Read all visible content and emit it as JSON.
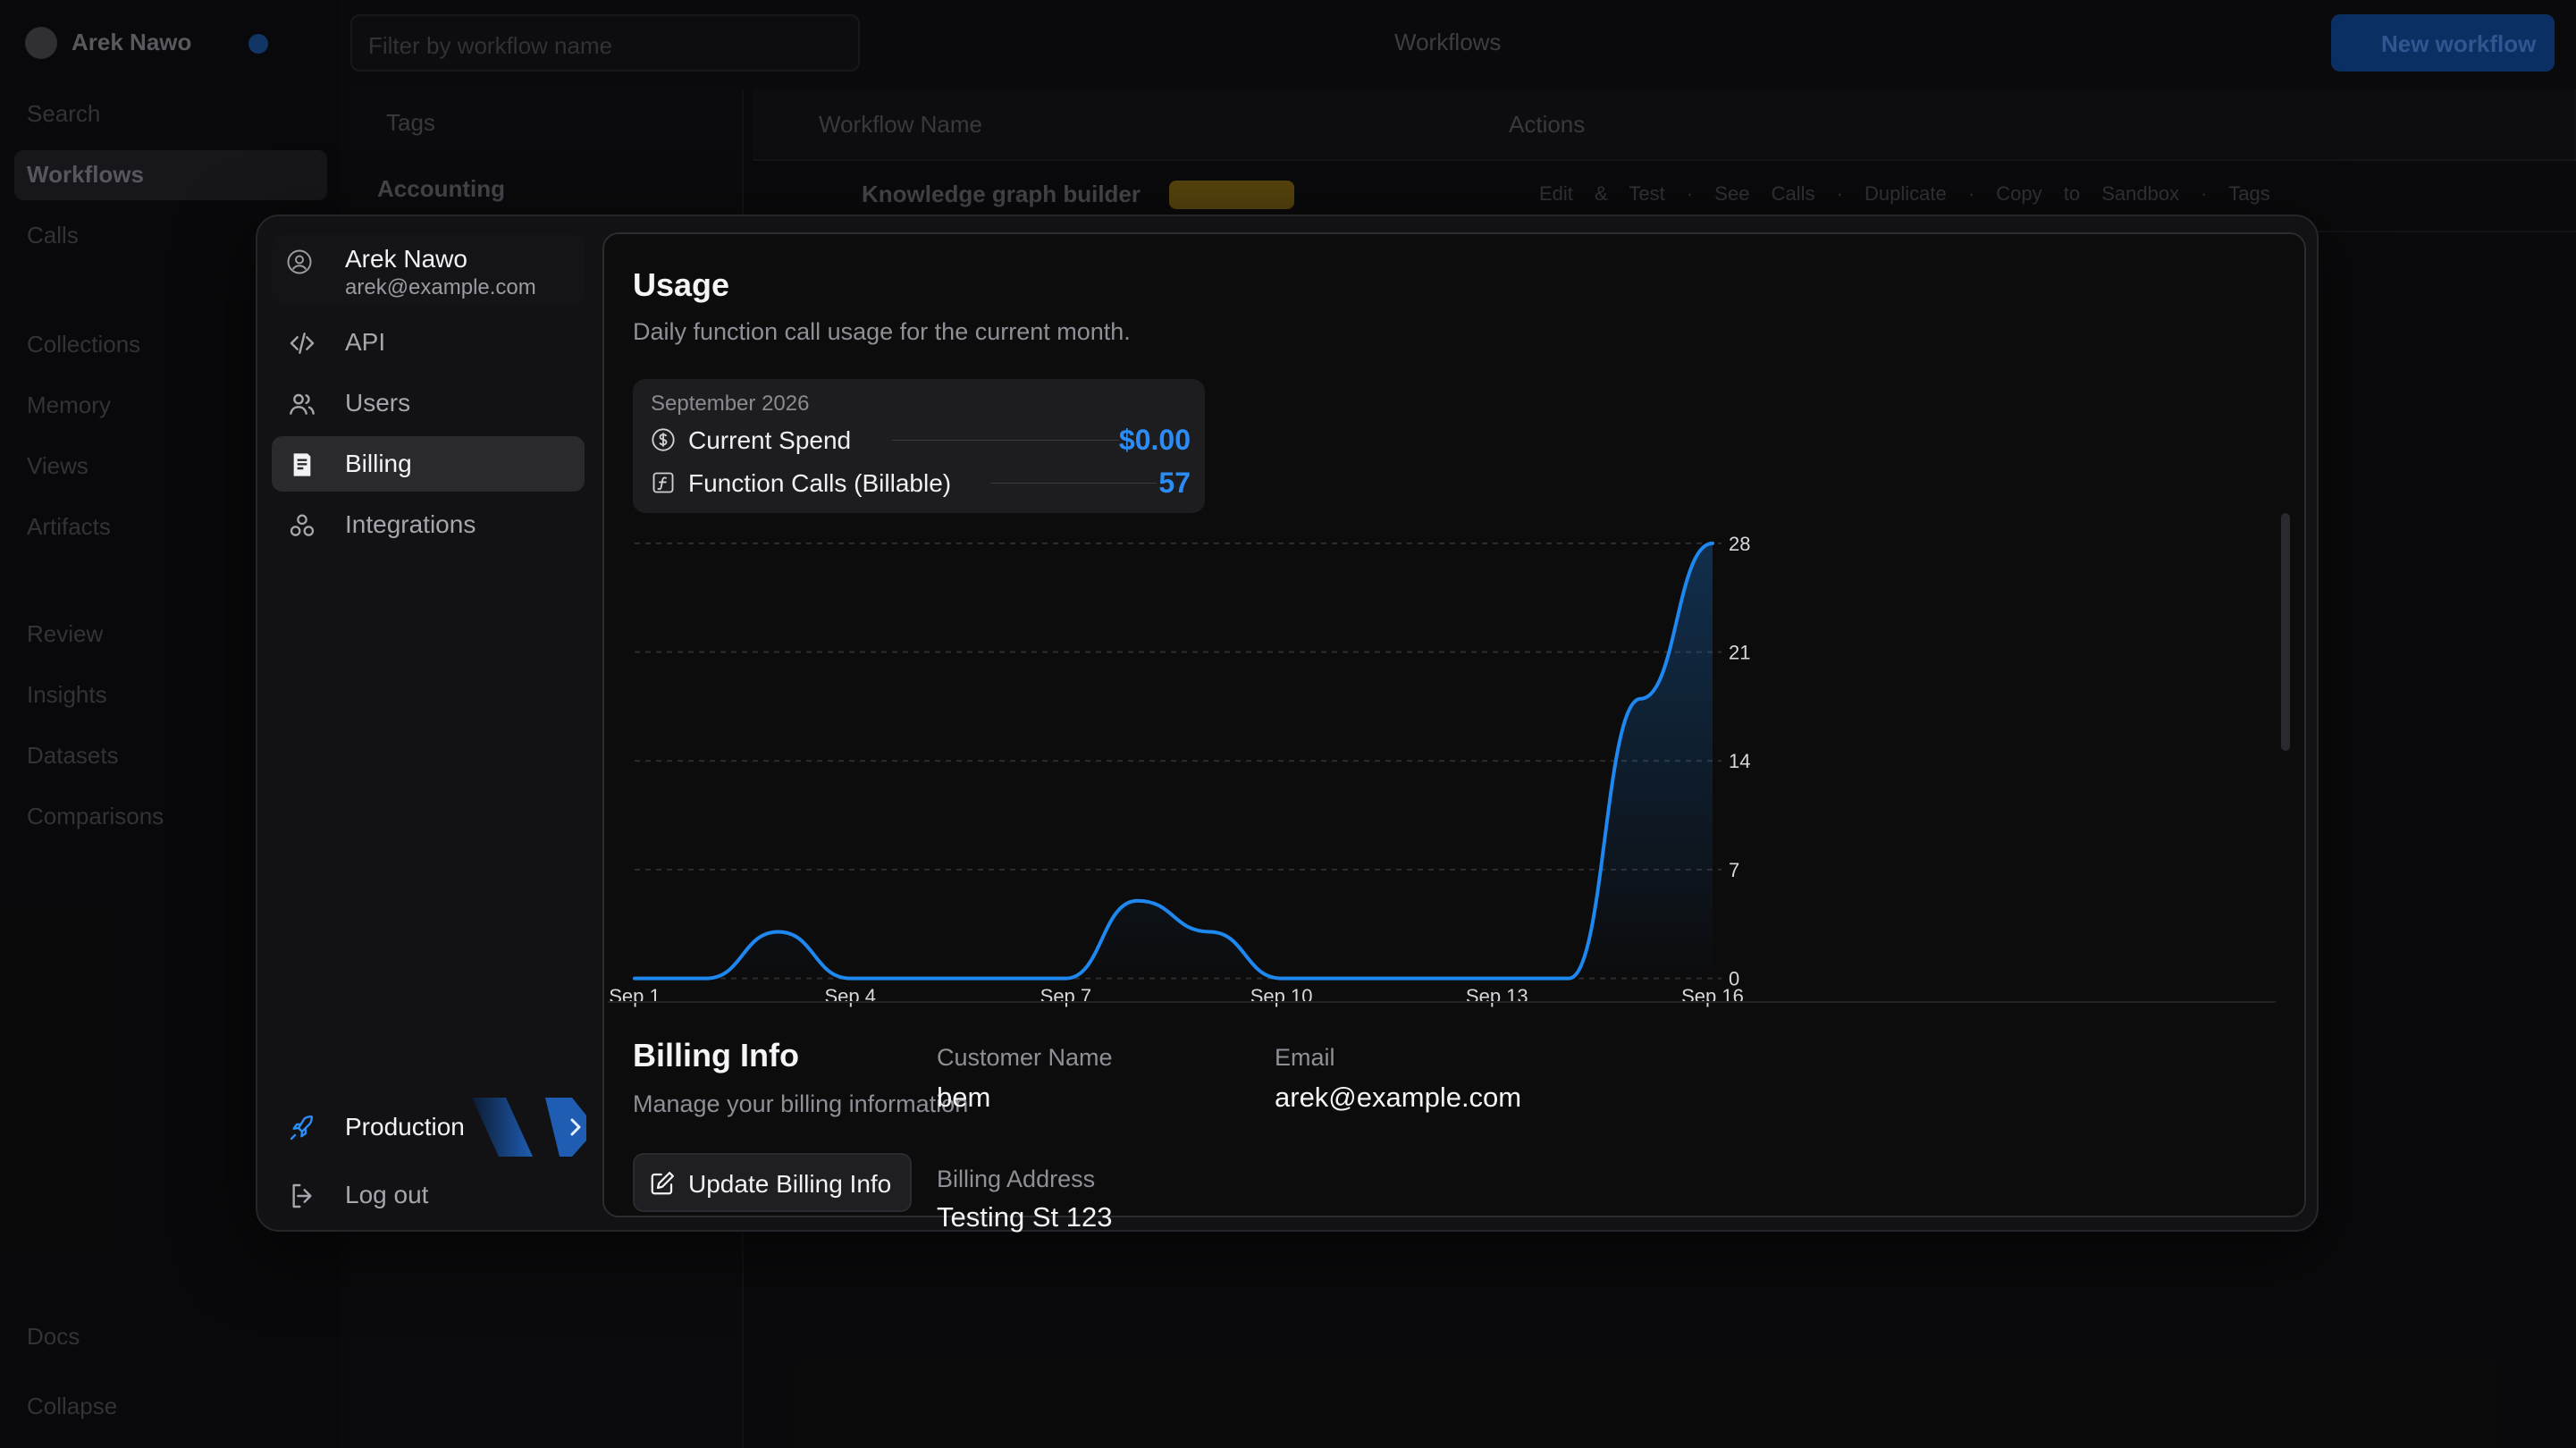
{
  "background": {
    "workspace_name": "Arek Nawo",
    "filter_placeholder": "Filter by workflow name",
    "center_label": "Workflows",
    "new_button": "New workflow",
    "nav": [
      "Search",
      "Workflows",
      "Calls",
      "Collections",
      "Memory",
      "Views",
      "Artifacts",
      "Review",
      "Insights",
      "Datasets",
      "Comparisons",
      "Docs",
      "Collapse"
    ],
    "tags_title": "Tags",
    "tag_item": "Accounting",
    "table_col_name": "Workflow Name",
    "table_col_actions": "Actions",
    "row_name": "Knowledge graph builder",
    "row_actions": "Edit & Test · See Calls · Duplicate · Copy to Sandbox · Tags"
  },
  "profile": {
    "name": "Arek Nawo",
    "email": "arek@example.com",
    "icon": "user-circle-icon"
  },
  "menu": [
    {
      "label": "API",
      "icon": "code-icon",
      "active": false
    },
    {
      "label": "Users",
      "icon": "users-icon",
      "active": false
    },
    {
      "label": "Billing",
      "icon": "receipt-icon",
      "active": true
    },
    {
      "label": "Integrations",
      "icon": "integrations-icon",
      "active": false
    }
  ],
  "environment": {
    "label": "Production",
    "icon": "rocket-icon"
  },
  "logout": {
    "label": "Log out",
    "icon": "logout-icon"
  },
  "usage": {
    "title": "Usage",
    "subtitle": "Daily function call usage for the current month.",
    "month": "September 2026",
    "spend_label": "Current Spend",
    "spend_value": "$0.00",
    "calls_label": "Function Calls (Billable)",
    "calls_value": "57"
  },
  "chart_data": {
    "type": "area",
    "x": [
      "Sep 1",
      "Sep 2",
      "Sep 3",
      "Sep 4",
      "Sep 5",
      "Sep 6",
      "Sep 7",
      "Sep 8",
      "Sep 9",
      "Sep 10",
      "Sep 11",
      "Sep 12",
      "Sep 13",
      "Sep 14",
      "Sep 15",
      "Sep 16"
    ],
    "x_ticks": [
      "Sep 1",
      "Sep 4",
      "Sep 7",
      "Sep 10",
      "Sep 13",
      "Sep 16"
    ],
    "values": [
      0,
      0,
      3,
      0,
      0,
      0,
      0,
      5,
      3,
      0,
      0,
      0,
      0,
      0,
      18,
      28
    ],
    "y_ticks": [
      0,
      7,
      14,
      21,
      28
    ],
    "ylim": [
      0,
      28
    ],
    "grid": true,
    "color": "#1e88f0"
  },
  "billing": {
    "title": "Billing Info",
    "subtitle": "Manage your billing information",
    "button": "Update Billing Info",
    "customer_label": "Customer Name",
    "customer_value": "bem",
    "email_label": "Email",
    "email_value": "arek@example.com",
    "address_label": "Billing Address",
    "address_value": "Testing St 123"
  }
}
